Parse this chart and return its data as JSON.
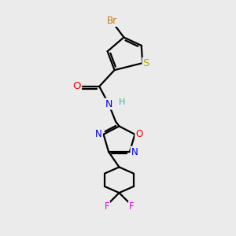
{
  "background_color": "#ebebeb",
  "atom_colors": {
    "C": "#000000",
    "H": "#40b0b0",
    "N": "#0000ee",
    "O": "#ee0000",
    "S": "#bbaa00",
    "Br": "#cc7700",
    "F": "#ee00ee"
  },
  "bond_color": "#000000",
  "bond_width": 1.6,
  "font_size_atom": 8.5
}
